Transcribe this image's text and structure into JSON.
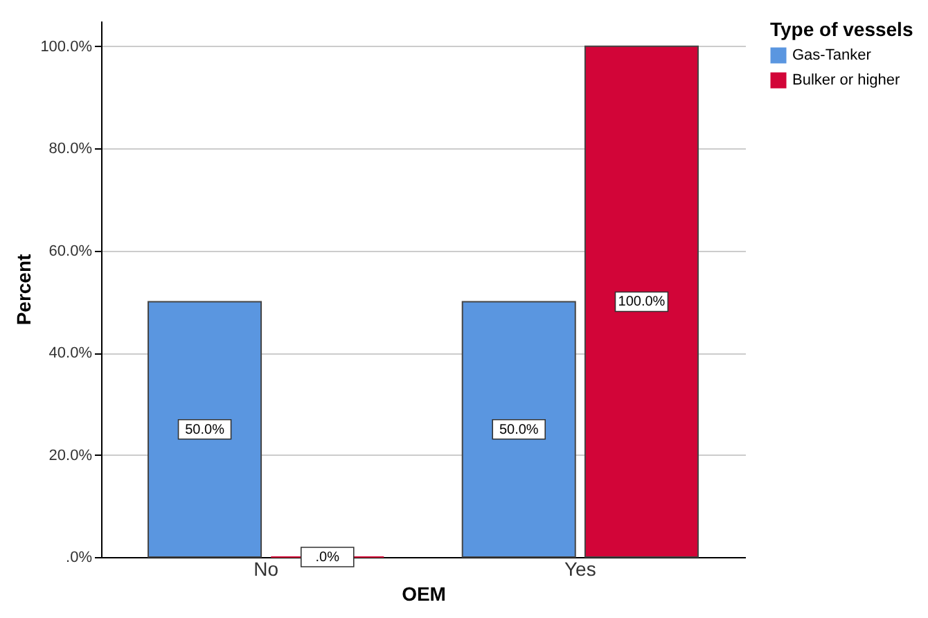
{
  "chart_data": {
    "type": "bar",
    "xlabel": "OEM",
    "ylabel": "Percent",
    "legend_title": "Type of vessels",
    "categories": [
      "No",
      "Yes"
    ],
    "series": [
      {
        "name": "Gas-Tanker",
        "color": "#5a96e0",
        "values": [
          50,
          50
        ],
        "value_labels": [
          "50.0%",
          "50.0%"
        ]
      },
      {
        "name": "Bulker or higher",
        "color": "#d20538",
        "values": [
          0,
          100
        ],
        "value_labels": [
          ".0%",
          "100.0%"
        ]
      }
    ],
    "ylim": [
      0,
      105
    ],
    "yticks": [
      {
        "value": 0,
        "label": ".0%"
      },
      {
        "value": 20,
        "label": "20.0%"
      },
      {
        "value": 40,
        "label": "40.0%"
      },
      {
        "value": 60,
        "label": "60.0%"
      },
      {
        "value": 80,
        "label": "80.0%"
      },
      {
        "value": 100,
        "label": "100.0%"
      }
    ],
    "grid": "y",
    "legend": "top right"
  }
}
